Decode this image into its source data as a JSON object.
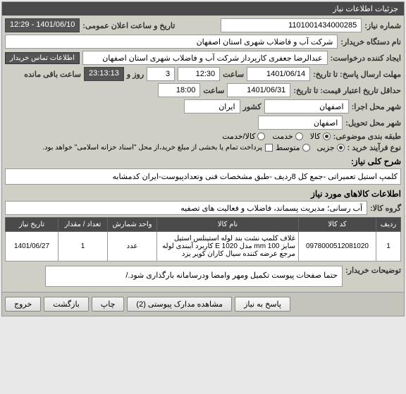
{
  "panel": {
    "title": "جزئیات اطلاعات نیاز"
  },
  "fields": {
    "need_number_label": "شماره نیاز:",
    "need_number": "1101001434000285",
    "announce_label": "تاریخ و ساعت اعلان عمومی:",
    "announce_value": "1401/06/10 - 12:29",
    "buyer_label": "نام دستگاه خریدار:",
    "buyer_value": "شرکت آب و فاضلاب شهری استان اصفهان",
    "requester_label": "ایجاد کننده درخواست:",
    "requester_value": "عبدالرضا جعفری کارپرداز شرکت آب و فاضلاب شهری استان اصفهان",
    "contact_btn": "اطلاعات تماس خریدار",
    "response_deadline_label": "مهلت ارسال پاسخ: تا تاریخ:",
    "response_date": "1401/06/14",
    "time_label": "ساعت",
    "response_time": "12:30",
    "days_left": "3",
    "days_left_label": "روز و",
    "countdown": "23:13:13",
    "remaining_label": "ساعت باقی مانده",
    "credit_label": "حداقل تاریخ اعتبار قیمت: تا تاریخ:",
    "credit_date": "1401/06/31",
    "credit_time": "18:00",
    "city_exec_label": "شهر محل اجرا:",
    "city_exec": "اصفهان",
    "country_label": "کشور",
    "country": "ایران",
    "city_deliver_label": "شهر محل تحویل:",
    "city_deliver": "اصفهان",
    "category_label": "طبقه بندی موضوعی:",
    "cat_goods": "کالا",
    "cat_service": "خدمت",
    "cat_both": "کالا/خدمت",
    "process_label": "نوع فرآیند خرید :",
    "process_partial": "جزیی",
    "process_medium": "متوسط",
    "payment_note": "پرداخت تمام یا بخشی از مبلغ خرید،از محل \"اسناد خزانه اسلامی\" خواهد بود."
  },
  "summary": {
    "title": "شرح کلی نیاز:",
    "text": "کلمپ استیل تعمیراتی -جمع کل 8ردیف -طبق مشخصات فنی وتعدادپیوست-ایران کدمشابه"
  },
  "goods": {
    "title": "اطلاعات کالاهای مورد نیاز",
    "group_label": "گروه کالا:",
    "group_value": "آب رسانی؛ مدیریت پسماند، فاضلاب و فعالیت های تصفیه",
    "columns": {
      "row": "ردیف",
      "code": "کد کالا",
      "name": "نام کالا",
      "unit": "واحد شمارش",
      "qty": "تعداد / مقدار",
      "date": "تاریخ نیاز"
    },
    "rows": [
      {
        "row": "1",
        "code": "0978000512081020",
        "name": "غلاف کلمپ نشت بند لوله استینلس استیل سایز mm 100 مدل E 1020 کاربرد آببندی لوله مرجع عرضه کننده سیال کاران کویر یزد",
        "unit": "عدد",
        "qty": "1",
        "date": "1401/06/27"
      }
    ]
  },
  "buyer_notes": {
    "label": "توضیحات خریدار:",
    "text": "حتما صفحات پیوست تکمیل ومهر وامضا ودرسامانه بارگذاری شود./"
  },
  "buttons": {
    "reply": "پاسخ به نیاز",
    "attachments": "مشاهده مدارک پیوستی (2)",
    "print": "چاپ",
    "back": "بازگشت",
    "exit": "خروج"
  }
}
